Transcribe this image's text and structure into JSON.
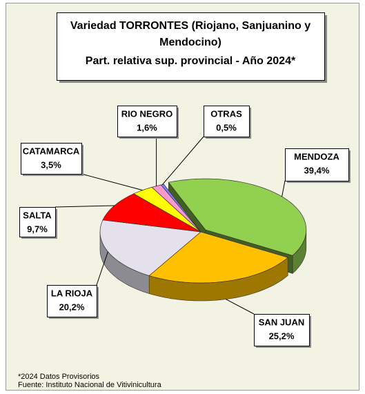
{
  "chart_data": {
    "type": "pie3d",
    "title": [
      "Variedad TORRONTES (Riojano, Sanjuanino y",
      "Mendocino)",
      "Part. relativa sup. provincial - Año 2024*"
    ],
    "categories": [
      "MENDOZA",
      "SAN JUAN",
      "LA RIOJA",
      "SALTA",
      "CATAMARCA",
      "RIO NEGRO",
      "OTRAS"
    ],
    "values": [
      39.4,
      25.2,
      20.2,
      9.7,
      3.5,
      1.6,
      0.5
    ],
    "value_labels": [
      "39,4%",
      "25,2%",
      "20,2%",
      "9,7%",
      "3,5%",
      "1,6%",
      "0,5%"
    ],
    "colors": [
      "#92d050",
      "#ffc000",
      "#e4e0ec",
      "#ff0000",
      "#ffff00",
      "#ff99cc",
      "#7f7fff"
    ],
    "footnotes": [
      "*2024 Datos Provisorios",
      "Fuente: Instituto Nacional de Vitivinicultura"
    ]
  }
}
